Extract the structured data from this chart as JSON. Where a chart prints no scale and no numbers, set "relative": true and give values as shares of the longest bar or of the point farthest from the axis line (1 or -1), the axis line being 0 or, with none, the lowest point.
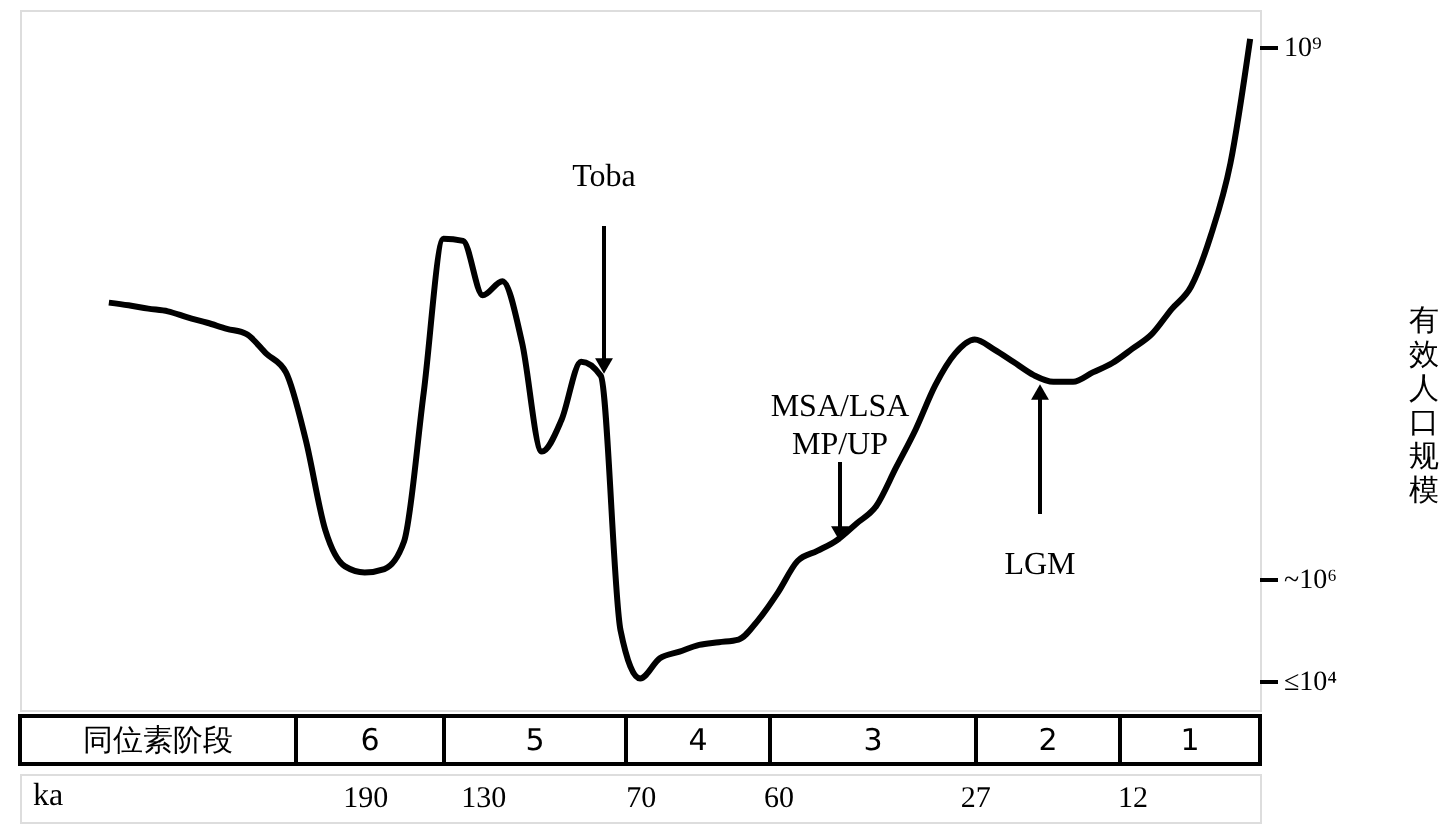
{
  "chart_data": {
    "type": "line",
    "relative": true,
    "ylabel": "有效人口规模",
    "xlabel": "ka",
    "categories": [
      null,
      null,
      null,
      null,
      null,
      null,
      null,
      null,
      null,
      null,
      null,
      null,
      null,
      null,
      null,
      null,
      "190",
      null,
      null,
      null,
      null,
      null,
      "130",
      null,
      null,
      null,
      null,
      null,
      null,
      null,
      "70",
      null,
      null,
      null,
      null,
      null,
      null,
      "60",
      null,
      null,
      null,
      null,
      null,
      null,
      null,
      null,
      null,
      "27",
      null,
      null,
      null,
      null,
      null,
      null,
      null,
      "12",
      null,
      null,
      null,
      null,
      null,
      null
    ],
    "values": [
      null,
      null,
      null,
      0.607,
      0.603,
      0.598,
      0.594,
      0.585,
      0.577,
      0.568,
      0.56,
      0.531,
      0.503,
      0.403,
      0.268,
      0.214,
      0.205,
      0.21,
      0.251,
      0.473,
      0.702,
      0.699,
      0.618,
      0.639,
      0.547,
      0.385,
      0.432,
      0.519,
      0.498,
      0.119,
      0.047,
      0.077,
      0.087,
      0.097,
      0.101,
      0.105,
      0.134,
      0.175,
      0.222,
      0.237,
      0.253,
      0.278,
      0.304,
      0.361,
      0.418,
      0.484,
      0.531,
      0.552,
      0.537,
      0.518,
      0.499,
      0.489,
      0.489,
      0.503,
      0.517,
      0.538,
      0.56,
      0.597,
      0.631,
      0.707,
      0.815,
      1
    ],
    "color": "#000000",
    "annotations": [
      "Toba",
      "MSA/LSA\nMP/UP",
      "LGM",
      "≤10⁴",
      "~10⁶",
      "10⁹",
      "同位素阶段",
      "6",
      "5",
      "4",
      "3",
      "2",
      "1"
    ],
    "grid": false
  }
}
